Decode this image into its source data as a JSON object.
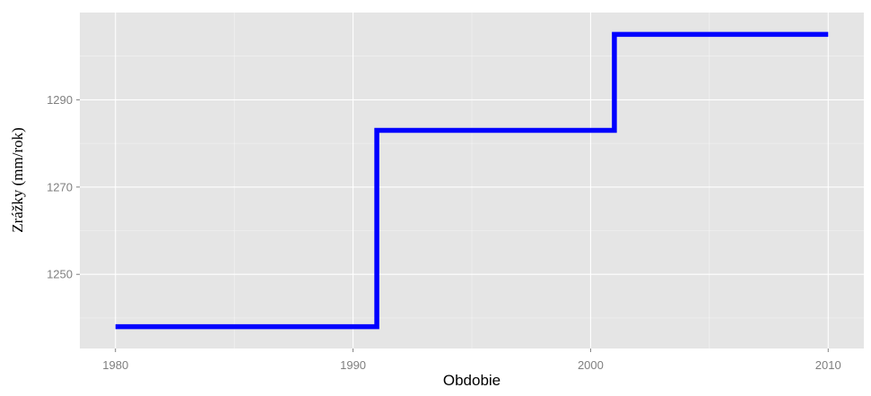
{
  "chart_data": {
    "type": "line",
    "style": "step",
    "title": "",
    "xlabel": "Obdobie",
    "ylabel": "Zrážky (mm/rok)",
    "xlim": [
      1978.5,
      2011.5
    ],
    "ylim": [
      1233,
      1310
    ],
    "x_ticks": [
      1980,
      1990,
      2000,
      2010
    ],
    "y_ticks": [
      1250,
      1270,
      1290
    ],
    "grid": true,
    "legend": "none",
    "colors": {
      "line": "#0000ff",
      "panel": "#e5e5e5",
      "grid": "#ffffff"
    },
    "series": [
      {
        "steps": [
          {
            "x_start": 1980,
            "x_end": 1991,
            "y": 1238
          },
          {
            "x_start": 1991,
            "x_end": 2001,
            "y": 1283
          },
          {
            "x_start": 2001,
            "x_end": 2010,
            "y": 1305
          }
        ]
      }
    ]
  }
}
